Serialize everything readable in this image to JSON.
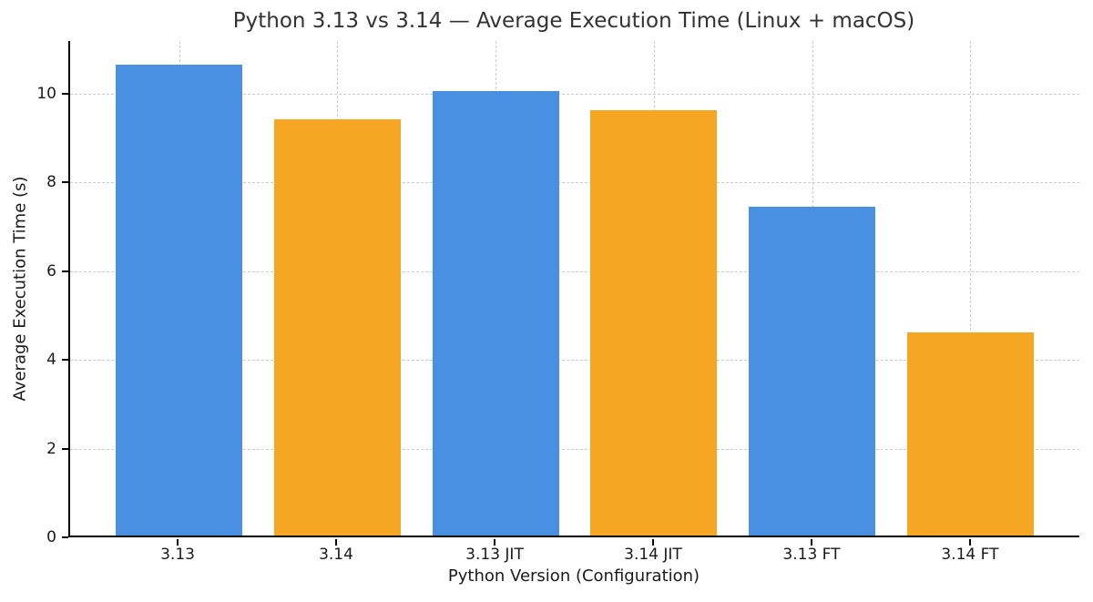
{
  "chart_data": {
    "type": "bar",
    "title": "Python 3.13 vs 3.14 — Average Execution Time (Linux + macOS)",
    "xlabel": "Python Version (Configuration)",
    "ylabel": "Average Execution Time (s)",
    "categories": [
      "3.13",
      "3.14",
      "3.13 JIT",
      "3.14 JIT",
      "3.13 FT",
      "3.14 FT"
    ],
    "values": [
      10.65,
      9.4,
      10.05,
      9.62,
      7.43,
      4.6
    ],
    "bar_colors": [
      "#4a90e2",
      "#f5a623",
      "#4a90e2",
      "#f5a623",
      "#4a90e2",
      "#f5a623"
    ],
    "ylim": [
      0,
      11.18
    ],
    "yticks": [
      0,
      2,
      4,
      6,
      8,
      10
    ],
    "xlim": [
      -0.69,
      5.69
    ],
    "bar_width": 0.8,
    "grid": "dashed",
    "legend": "none"
  },
  "colors": {
    "blue": "#4a90e2",
    "orange": "#f5a623",
    "grid": "#cccccc",
    "spine": "#000000",
    "title_text": "#333333"
  }
}
